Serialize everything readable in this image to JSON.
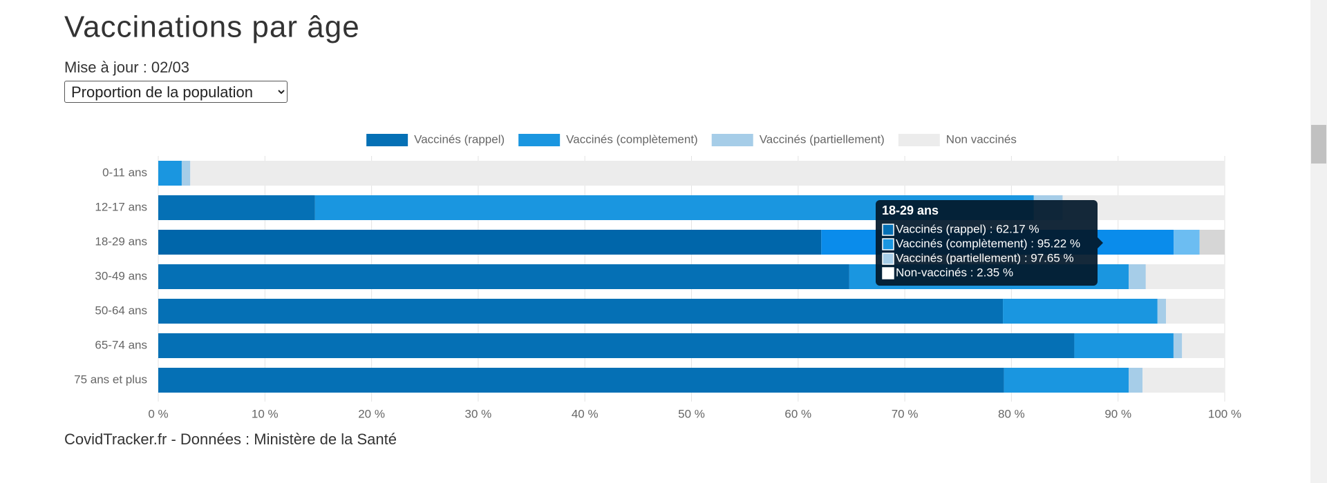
{
  "header": {
    "title": "Vaccinations par âge",
    "updated": "Mise à jour : 02/03",
    "select": "Proportion de la population"
  },
  "chart_data": {
    "type": "stacked-barh",
    "categories": [
      "0-11 ans",
      "12-17 ans",
      "18-29 ans",
      "30-49 ans",
      "50-64 ans",
      "65-74 ans",
      "75 ans et plus"
    ],
    "series": [
      {
        "name": "Vaccinés (rappel)",
        "color": "#0570b5",
        "hover_color": "#0066aa",
        "values": [
          0,
          14.7,
          62.17,
          64.8,
          79.2,
          85.9,
          79.3
        ]
      },
      {
        "name": "Vaccinés (complètement)",
        "color": "#1a96e0",
        "hover_color": "#0a8ceb",
        "values": [
          2.2,
          67.4,
          33.05,
          26.2,
          14.5,
          9.3,
          11.7
        ]
      },
      {
        "name": "Vaccinés (partiellement)",
        "color": "#a6cde8",
        "hover_color": "#6cbdf2",
        "values": [
          0.8,
          2.7,
          2.43,
          1.6,
          0.8,
          0.8,
          1.3
        ]
      },
      {
        "name": "Non vaccinés",
        "color": "#ececec",
        "hover_color": "#d6d6d6",
        "values": [
          97.0,
          15.2,
          2.35,
          7.4,
          5.5,
          4.0,
          7.7
        ]
      }
    ],
    "xlim": [
      0,
      100
    ],
    "xticks": [
      {
        "value": 0,
        "label": "0 %"
      },
      {
        "value": 10,
        "label": "10 %"
      },
      {
        "value": 20,
        "label": "20 %"
      },
      {
        "value": 30,
        "label": "30 %"
      },
      {
        "value": 40,
        "label": "40 %"
      },
      {
        "value": 50,
        "label": "50 %"
      },
      {
        "value": 60,
        "label": "60 %"
      },
      {
        "value": 70,
        "label": "70 %"
      },
      {
        "value": 80,
        "label": "80 %"
      },
      {
        "value": 90,
        "label": "90 %"
      },
      {
        "value": 100,
        "label": "100 %"
      }
    ],
    "grid": true,
    "legend": "top",
    "tooltip": {
      "title": "18-29 ans",
      "items": [
        "Vaccinés (rappel) : 62.17 %",
        "Vaccinés (complètement) : 95.22 %",
        "Vaccinés (partiellement) : 97.65 %",
        "Non-vaccinés : 2.35 %"
      ]
    }
  },
  "footer": {
    "source": "CovidTracker.fr - Données : Ministère de la Santé"
  }
}
